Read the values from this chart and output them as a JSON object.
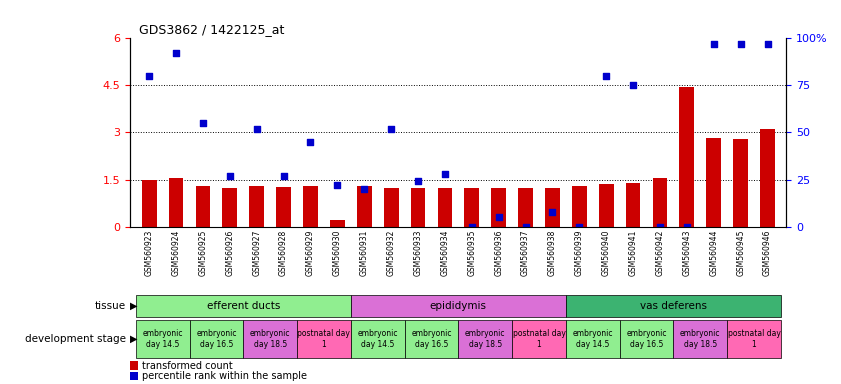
{
  "title": "GDS3862 / 1422125_at",
  "samples": [
    "GSM560923",
    "GSM560924",
    "GSM560925",
    "GSM560926",
    "GSM560927",
    "GSM560928",
    "GSM560929",
    "GSM560930",
    "GSM560931",
    "GSM560932",
    "GSM560933",
    "GSM560934",
    "GSM560935",
    "GSM560936",
    "GSM560937",
    "GSM560938",
    "GSM560939",
    "GSM560940",
    "GSM560941",
    "GSM560942",
    "GSM560943",
    "GSM560944",
    "GSM560945",
    "GSM560946"
  ],
  "transformed_count": [
    1.48,
    1.55,
    1.28,
    1.22,
    1.28,
    1.25,
    1.28,
    0.22,
    1.28,
    1.22,
    1.22,
    1.22,
    1.22,
    1.22,
    1.22,
    1.22,
    1.28,
    1.35,
    1.4,
    1.55,
    4.45,
    2.82,
    2.8,
    3.1
  ],
  "percentile_rank": [
    80,
    92,
    55,
    27,
    52,
    27,
    45,
    22,
    20,
    52,
    24,
    28,
    0,
    5,
    0,
    8,
    0,
    80,
    75,
    0,
    0,
    97,
    97,
    97
  ],
  "tissue_groups": [
    {
      "label": "efferent ducts",
      "start": 0,
      "end": 7,
      "color": "#90EE90"
    },
    {
      "label": "epididymis",
      "start": 8,
      "end": 15,
      "color": "#DA70D6"
    },
    {
      "label": "vas deferens",
      "start": 16,
      "end": 23,
      "color": "#3CB371"
    }
  ],
  "dev_stage_groups": [
    {
      "label": "embryonic\nday 14.5",
      "start": 0,
      "end": 1,
      "color": "#90EE90"
    },
    {
      "label": "embryonic\nday 16.5",
      "start": 2,
      "end": 3,
      "color": "#90EE90"
    },
    {
      "label": "embryonic\nday 18.5",
      "start": 4,
      "end": 5,
      "color": "#DA70D6"
    },
    {
      "label": "postnatal day\n1",
      "start": 6,
      "end": 7,
      "color": "#FF69B4"
    },
    {
      "label": "embryonic\nday 14.5",
      "start": 8,
      "end": 9,
      "color": "#90EE90"
    },
    {
      "label": "embryonic\nday 16.5",
      "start": 10,
      "end": 11,
      "color": "#90EE90"
    },
    {
      "label": "embryonic\nday 18.5",
      "start": 12,
      "end": 13,
      "color": "#DA70D6"
    },
    {
      "label": "postnatal day\n1",
      "start": 14,
      "end": 15,
      "color": "#FF69B4"
    },
    {
      "label": "embryonic\nday 14.5",
      "start": 16,
      "end": 17,
      "color": "#90EE90"
    },
    {
      "label": "embryonic\nday 16.5",
      "start": 18,
      "end": 19,
      "color": "#90EE90"
    },
    {
      "label": "embryonic\nday 18.5",
      "start": 20,
      "end": 21,
      "color": "#DA70D6"
    },
    {
      "label": "postnatal day\n1",
      "start": 22,
      "end": 23,
      "color": "#FF69B4"
    }
  ],
  "ylim_left": [
    0,
    6
  ],
  "ylim_right": [
    0,
    100
  ],
  "yticks_left": [
    0,
    1.5,
    3.0,
    4.5,
    6.0
  ],
  "yticks_right": [
    0,
    25,
    50,
    75,
    100
  ],
  "ytick_labels_left": [
    "0",
    "1.5",
    "3",
    "4.5",
    "6"
  ],
  "ytick_labels_right": [
    "0",
    "25",
    "50",
    "75",
    "100%"
  ],
  "bar_color": "#CC0000",
  "scatter_color": "#0000CC",
  "background_color": "#ffffff",
  "xticklabel_bg": "#d3d3d3"
}
